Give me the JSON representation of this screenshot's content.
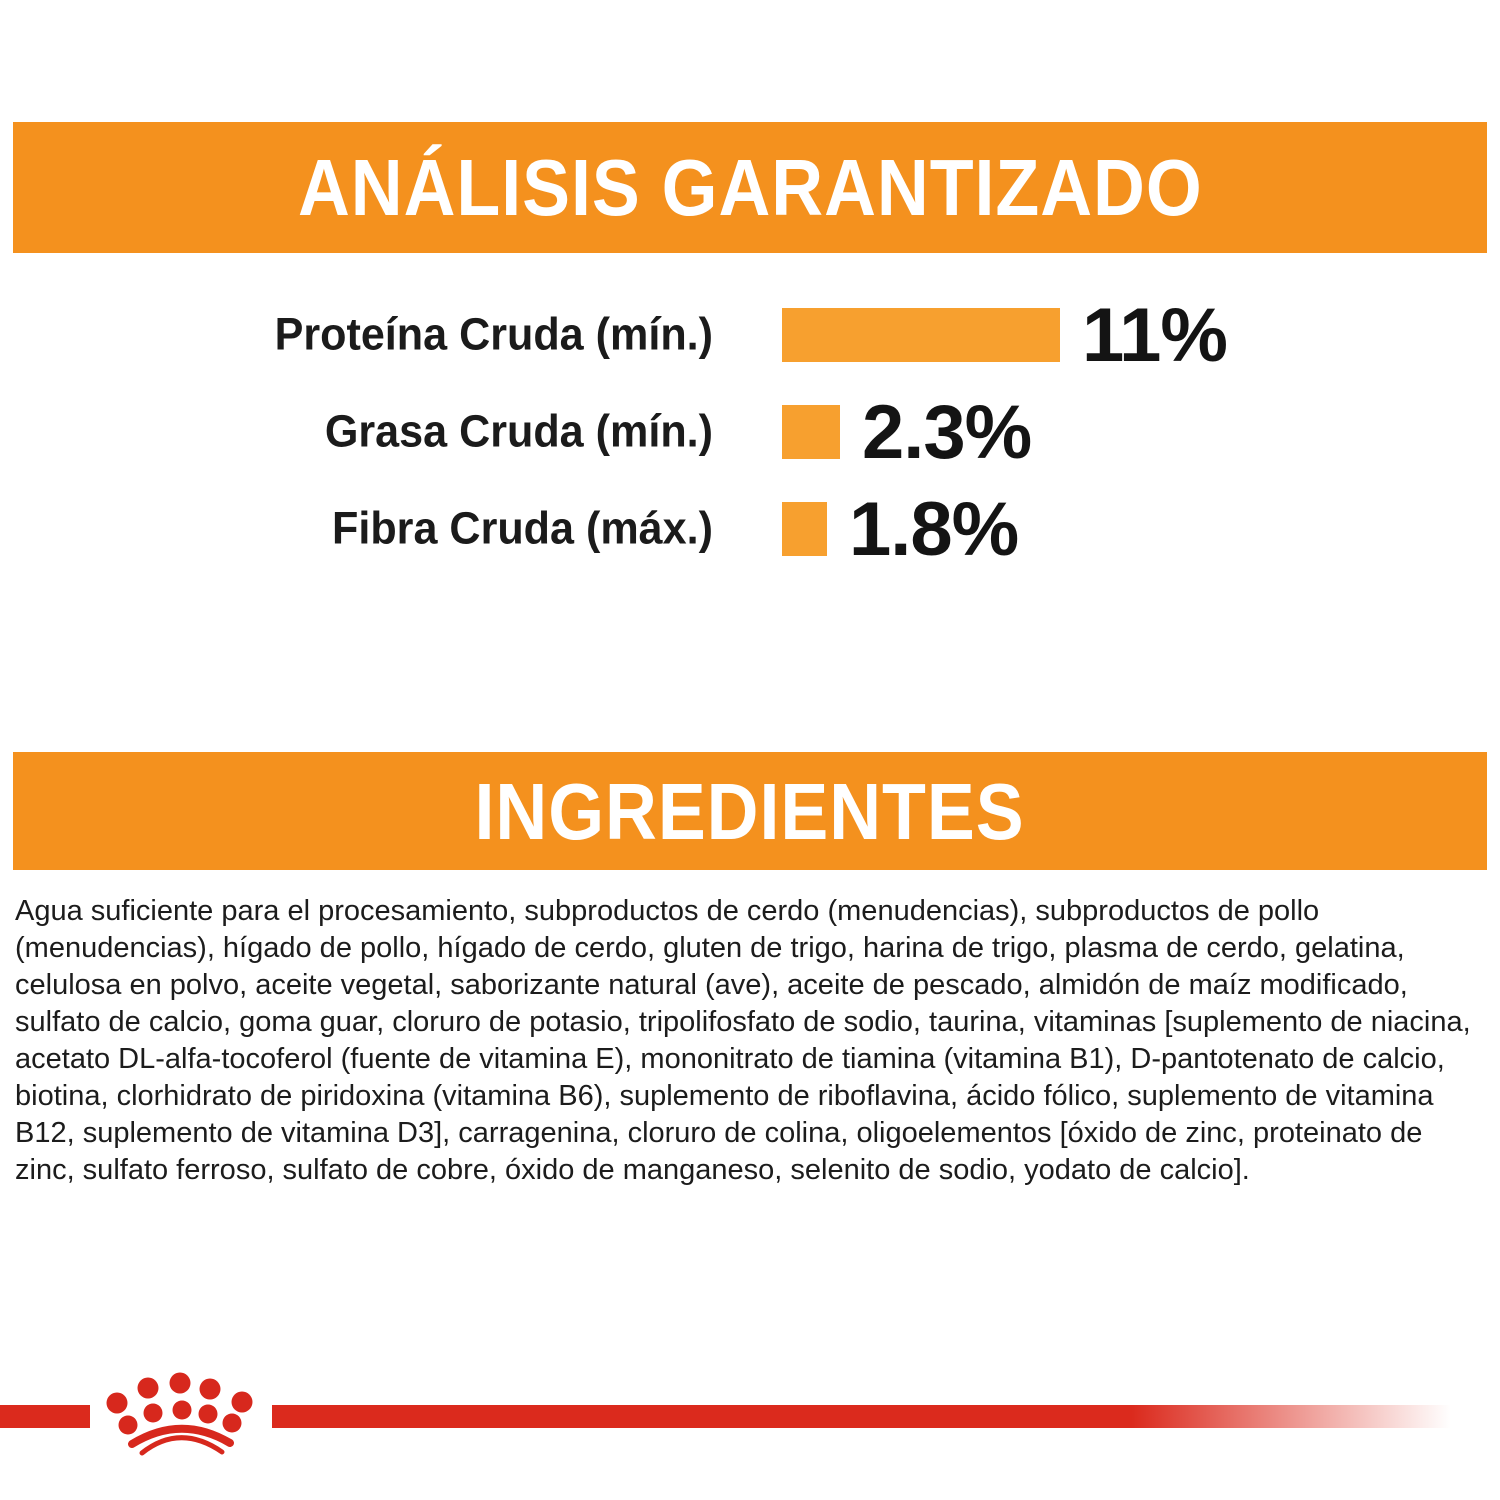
{
  "analysis": {
    "title": "ANÁLISIS GARANTIZADO"
  },
  "chart_data": {
    "type": "bar",
    "orientation": "horizontal",
    "title": "ANÁLISIS GARANTIZADO",
    "categories": [
      "Proteína Cruda (mín.)",
      "Grasa Cruda (mín.)",
      "Fibra Cruda (máx.)"
    ],
    "values": [
      11,
      2.3,
      1.8
    ],
    "value_labels": [
      "11%",
      "2.3%",
      "1.8%"
    ],
    "unit": "%",
    "xlim": [
      0,
      11
    ],
    "grid": false,
    "legend": false,
    "bar_color": "#F7A02F"
  },
  "ingredients": {
    "title": "INGREDIENTES",
    "text": "Agua suficiente para el procesamiento, subproductos de cerdo (menudencias), subproductos de pollo (menudencias), hígado de pollo, hígado de cerdo, gluten de trigo, harina de trigo, plasma de cerdo, gelatina, celulosa en polvo, aceite vegetal, saborizante natural (ave), aceite de pescado, almidón de maíz modificado, sulfato de calcio, goma guar, cloruro de potasio, tripolifosfato de sodio, taurina, vitaminas [suplemento de niacina, acetato DL-alfa-tocoferol (fuente de vitamina E), mononitrato de tiamina (vitamina B1), D-pantotenato de calcio, biotina, clorhidrato de piridoxina (vitamina B6), suplemento de riboflavina, ácido fólico, suplemento de vitamina B12, suplemento de vitamina D3], carragenina, cloruro de colina, oligoelementos [óxido de zinc, proteinato de zinc, sulfato ferroso, sulfato de cobre, óxido de manganeso, selenito de sodio, yodato de calcio]."
  },
  "footer": {
    "logo": "royal-canin-crown"
  },
  "colors": {
    "banner_orange": "#F4911E",
    "bar_orange": "#F7A02F",
    "brand_red": "#DB2A1D",
    "text_black": "#1c1c1c"
  }
}
